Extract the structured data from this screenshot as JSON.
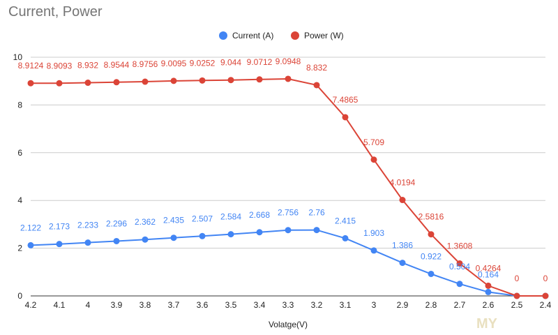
{
  "chart_data": {
    "type": "line",
    "title": "Current, Power",
    "xlabel": "Volatge(V)",
    "ylabel": "",
    "ylim": [
      0,
      10
    ],
    "yticks": [
      "0",
      "2",
      "4",
      "6",
      "8",
      "10"
    ],
    "categories": [
      "4.2",
      "4.1",
      "4",
      "3.9",
      "3.8",
      "3.7",
      "3.6",
      "3.5",
      "3.4",
      "3.3",
      "3.2",
      "3.1",
      "3",
      "2.9",
      "2.8",
      "2.7",
      "2.6",
      "2.5",
      "2.4"
    ],
    "legend_position": "top-center",
    "series": [
      {
        "name": "Current (A)",
        "color": "#4285f4",
        "values": [
          2.122,
          2.173,
          2.233,
          2.296,
          2.362,
          2.435,
          2.507,
          2.584,
          2.668,
          2.756,
          2.76,
          2.415,
          1.903,
          1.386,
          0.922,
          0.504,
          0.164,
          0,
          0
        ],
        "labels": [
          "2.122",
          "2.173",
          "2.233",
          "2.296",
          "2.362",
          "2.435",
          "2.507",
          "2.584",
          "2.668",
          "2.756",
          "2.76",
          "2.415",
          "1.903",
          "1.386",
          "0.922",
          "0.504",
          "0.164",
          "",
          ""
        ]
      },
      {
        "name": "Power (W)",
        "color": "#db4437",
        "values": [
          8.9124,
          8.9093,
          8.932,
          8.9544,
          8.9756,
          9.0095,
          9.0252,
          9.044,
          9.0712,
          9.0948,
          8.832,
          7.4865,
          5.709,
          4.0194,
          2.5816,
          1.3608,
          0.4264,
          0,
          0
        ],
        "labels": [
          "8.9124",
          "8.9093",
          "8.932",
          "8.9544",
          "8.9756",
          "9.0095",
          "9.0252",
          "9.044",
          "9.0712",
          "9.0948",
          "8.832",
          "7.4865",
          "5.709",
          "4.0194",
          "2.5816",
          "1.3608",
          "0.4264",
          "0",
          "0"
        ]
      }
    ]
  },
  "watermark": "MY"
}
